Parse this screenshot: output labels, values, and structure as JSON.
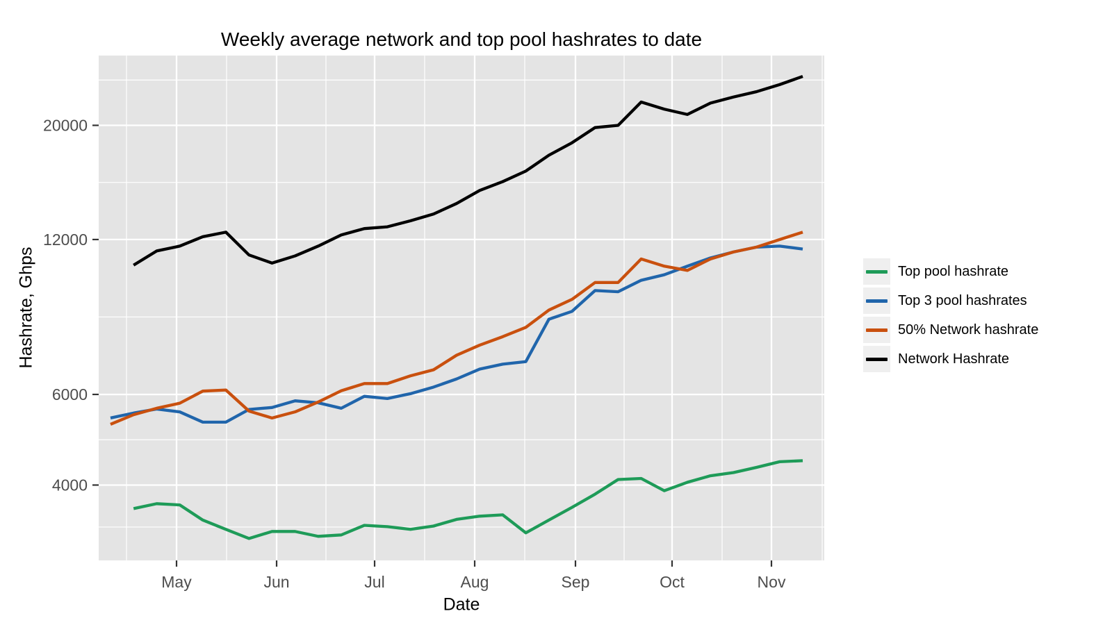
{
  "title": "Weekly average network and top pool hashrates to date",
  "x_axis": {
    "label": "Date",
    "tick_labels": [
      "May",
      "Jun",
      "Jul",
      "Aug",
      "Sep",
      "Oct",
      "Nov"
    ]
  },
  "y_axis": {
    "label": "Hashrate, Ghps",
    "scale": "log10",
    "tick_labels": [
      "20000",
      "12000",
      "6000",
      "4000"
    ],
    "breaks": [
      20000,
      12000,
      6000,
      4000
    ],
    "minor_breaks": [
      24495,
      15492,
      8485,
      4899,
      3315
    ],
    "range": [
      2855,
      27330
    ]
  },
  "colors": {
    "page_bg": "#ffffff",
    "panel_bg": "#e4e4e4",
    "grid": "#ffffff",
    "axis_text": "#4d4d4d",
    "tick_mark": "#333333",
    "text": "#000000",
    "legend_key_bg": "#efefef"
  },
  "chart_data": {
    "type": "line",
    "title": "Weekly average network and top pool hashrates to date",
    "xlabel": "Date",
    "ylabel": "Hashrate, Ghps",
    "y_scale": "log10",
    "grid": "on",
    "legend_position": "right",
    "x": [
      "Apr 14",
      "Apr 21",
      "Apr 28",
      "May 5",
      "May 12",
      "May 19",
      "May 26",
      "Jun 2",
      "Jun 9",
      "Jun 16",
      "Jun 23",
      "Jun 30",
      "Jul 7",
      "Jul 14",
      "Jul 21",
      "Jul 28",
      "Aug 4",
      "Aug 11",
      "Aug 18",
      "Aug 25",
      "Sep 1",
      "Sep 8",
      "Sep 15",
      "Sep 22",
      "Sep 29",
      "Oct 6",
      "Oct 13",
      "Oct 20",
      "Oct 27",
      "Nov 3",
      "Nov 10"
    ],
    "series": [
      {
        "name": "Top pool hashrate",
        "color": "#1e9b58",
        "values": [
          null,
          3600,
          3680,
          3660,
          3420,
          3280,
          3150,
          3250,
          3250,
          3180,
          3200,
          3340,
          3320,
          3280,
          3330,
          3430,
          3480,
          3500,
          3230,
          3420,
          3620,
          3840,
          4100,
          4120,
          3900,
          4050,
          4170,
          4230,
          4330,
          4440,
          4460
        ]
      },
      {
        "name": "Top 3 pool hashrates",
        "color": "#2065ab",
        "values": [
          5400,
          5520,
          5620,
          5550,
          5300,
          5300,
          5610,
          5660,
          5830,
          5780,
          5640,
          5950,
          5890,
          6020,
          6200,
          6430,
          6720,
          6870,
          6950,
          8400,
          8700,
          9550,
          9500,
          10000,
          10250,
          10650,
          11050,
          11350,
          11600,
          11650,
          11500
        ]
      },
      {
        "name": "50% Network hashrate",
        "color": "#c9500e",
        "values": [
          5250,
          5480,
          5640,
          5770,
          6090,
          6120,
          5570,
          5400,
          5550,
          5800,
          6100,
          6300,
          6300,
          6520,
          6700,
          7150,
          7480,
          7770,
          8100,
          8750,
          9180,
          9900,
          9900,
          11000,
          10650,
          10450,
          11000,
          11350,
          11600,
          12000,
          12400
        ]
      },
      {
        "name": "Network Hashrate",
        "color": "#000000",
        "values": [
          null,
          10700,
          11400,
          11650,
          12150,
          12400,
          11200,
          10800,
          11150,
          11650,
          12250,
          12600,
          12700,
          13050,
          13450,
          14100,
          14950,
          15550,
          16300,
          17500,
          18500,
          19800,
          20000,
          22200,
          21500,
          21000,
          22100,
          22700,
          23250,
          24000,
          24900
        ]
      }
    ]
  }
}
